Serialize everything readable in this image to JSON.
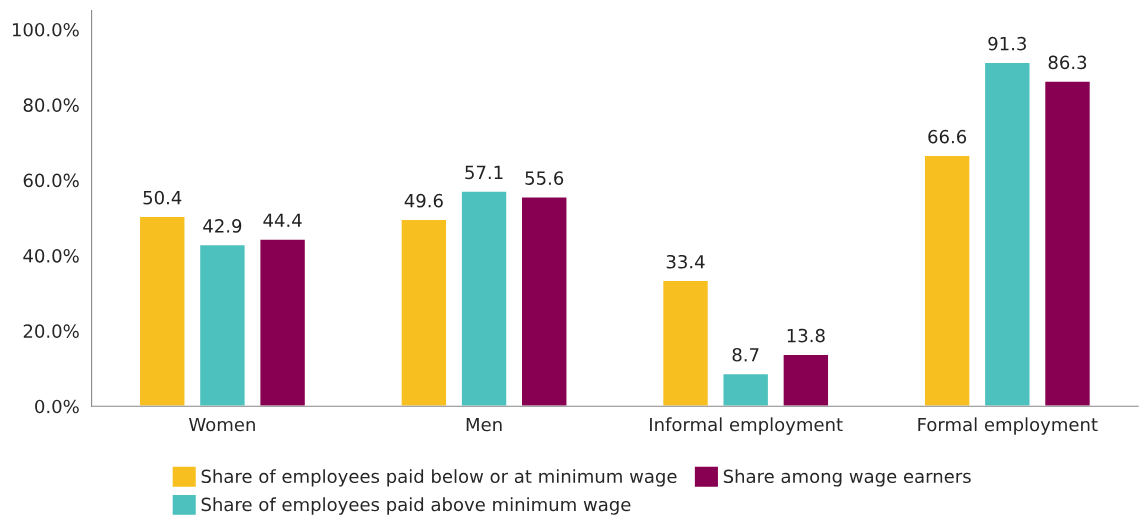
{
  "chart_data": {
    "type": "bar",
    "categories": [
      "Women",
      "Men",
      "Informal employment",
      "Formal employment"
    ],
    "series": [
      {
        "name": "Share of employees paid below or at minimum wage",
        "color": "#f7c020",
        "values": [
          50.4,
          49.6,
          33.4,
          66.6
        ]
      },
      {
        "name": "Share of employees paid above minimum wage",
        "color": "#4cc1bd",
        "values": [
          42.9,
          57.1,
          8.7,
          91.3
        ]
      },
      {
        "name": "Share among wage earners",
        "color": "#870052",
        "values": [
          44.4,
          55.6,
          13.8,
          86.3
        ]
      }
    ],
    "ylim": [
      0,
      105
    ],
    "yticks": [
      {
        "value": 0,
        "label": "0.0%"
      },
      {
        "value": 20,
        "label": "20.0%"
      },
      {
        "value": 40,
        "label": "40.0%"
      },
      {
        "value": 60,
        "label": "60.0%"
      },
      {
        "value": 80,
        "label": "80.0%"
      },
      {
        "value": 100,
        "label": "100.0%"
      }
    ],
    "data_labels": true,
    "grid": false,
    "legend": "bottom"
  }
}
